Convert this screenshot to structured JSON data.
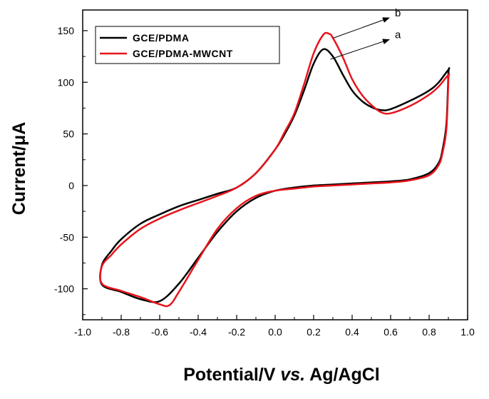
{
  "chart_data": {
    "type": "line",
    "xlabel": "Potential/V ",
    "xlabel_italic": "vs.",
    "xlabel_tail": " Ag/AgCl",
    "ylabel": "Current/μA",
    "xlim": [
      -1.0,
      1.0
    ],
    "ylim": [
      -130,
      170
    ],
    "x_ticks": [
      "-1.0",
      "-0.8",
      "-0.6",
      "-0.4",
      "-0.2",
      "0.0",
      "0.2",
      "0.4",
      "0.6",
      "0.8",
      "1.0"
    ],
    "x_tick_values": [
      -1.0,
      -0.8,
      -0.6,
      -0.4,
      -0.2,
      0.0,
      0.2,
      0.4,
      0.6,
      0.8,
      1.0
    ],
    "y_ticks": [
      "-100",
      "-50",
      "0",
      "50",
      "100",
      "150"
    ],
    "y_tick_values": [
      -100,
      -50,
      0,
      50,
      100,
      150
    ],
    "grid": false,
    "legend_position": "top-left",
    "series": [
      {
        "name": "GCE/PDMA",
        "color": "#000000",
        "x": [
          -0.9,
          -0.85,
          -0.8,
          -0.7,
          -0.6,
          -0.5,
          -0.4,
          -0.3,
          -0.2,
          -0.1,
          0.0,
          0.05,
          0.1,
          0.15,
          0.2,
          0.25,
          0.3,
          0.35,
          0.4,
          0.45,
          0.5,
          0.55,
          0.6,
          0.7,
          0.8,
          0.85,
          0.9,
          0.9,
          0.89,
          0.87,
          0.85,
          0.8,
          0.7,
          0.6,
          0.5,
          0.4,
          0.3,
          0.2,
          0.1,
          0.0,
          -0.1,
          -0.2,
          -0.3,
          -0.4,
          -0.5,
          -0.6,
          -0.7,
          -0.8,
          -0.9
        ],
        "y": [
          -77,
          -63,
          -52,
          -37,
          -28,
          -20,
          -14,
          -8,
          -2,
          12,
          35,
          50,
          68,
          92,
          118,
          132,
          125,
          108,
          92,
          82,
          76,
          73,
          74,
          82,
          92,
          100,
          112,
          108,
          60,
          35,
          22,
          12,
          6,
          4,
          3,
          2,
          1,
          0,
          -2,
          -5,
          -12,
          -25,
          -45,
          -70,
          -95,
          -112,
          -110,
          -103,
          -96
        ]
      },
      {
        "name": "GCE/PDMA-MWCNT",
        "color": "#e8141b",
        "x": [
          -0.9,
          -0.85,
          -0.8,
          -0.7,
          -0.6,
          -0.5,
          -0.4,
          -0.3,
          -0.2,
          -0.1,
          0.0,
          0.05,
          0.1,
          0.15,
          0.2,
          0.25,
          0.28,
          0.3,
          0.35,
          0.4,
          0.45,
          0.5,
          0.55,
          0.6,
          0.7,
          0.8,
          0.85,
          0.9,
          0.9,
          0.89,
          0.87,
          0.85,
          0.8,
          0.7,
          0.6,
          0.5,
          0.4,
          0.3,
          0.2,
          0.1,
          0.0,
          -0.1,
          -0.2,
          -0.3,
          -0.4,
          -0.5,
          -0.55,
          -0.6,
          -0.7,
          -0.8,
          -0.9
        ],
        "y": [
          -78,
          -67,
          -57,
          -42,
          -32,
          -24,
          -17,
          -10,
          -2,
          12,
          35,
          52,
          70,
          98,
          128,
          146,
          147,
          143,
          125,
          103,
          88,
          78,
          71,
          70,
          77,
          88,
          96,
          107,
          102,
          55,
          32,
          20,
          10,
          5,
          3,
          2,
          1,
          0,
          -1,
          -3,
          -5,
          -10,
          -22,
          -42,
          -72,
          -103,
          -116,
          -115,
          -108,
          -102,
          -95
        ]
      }
    ],
    "annotations": [
      {
        "text": "b",
        "x_data": 0.6,
        "y_data": 161
      },
      {
        "text": "a",
        "x_data": 0.6,
        "y_data": 140
      }
    ]
  }
}
